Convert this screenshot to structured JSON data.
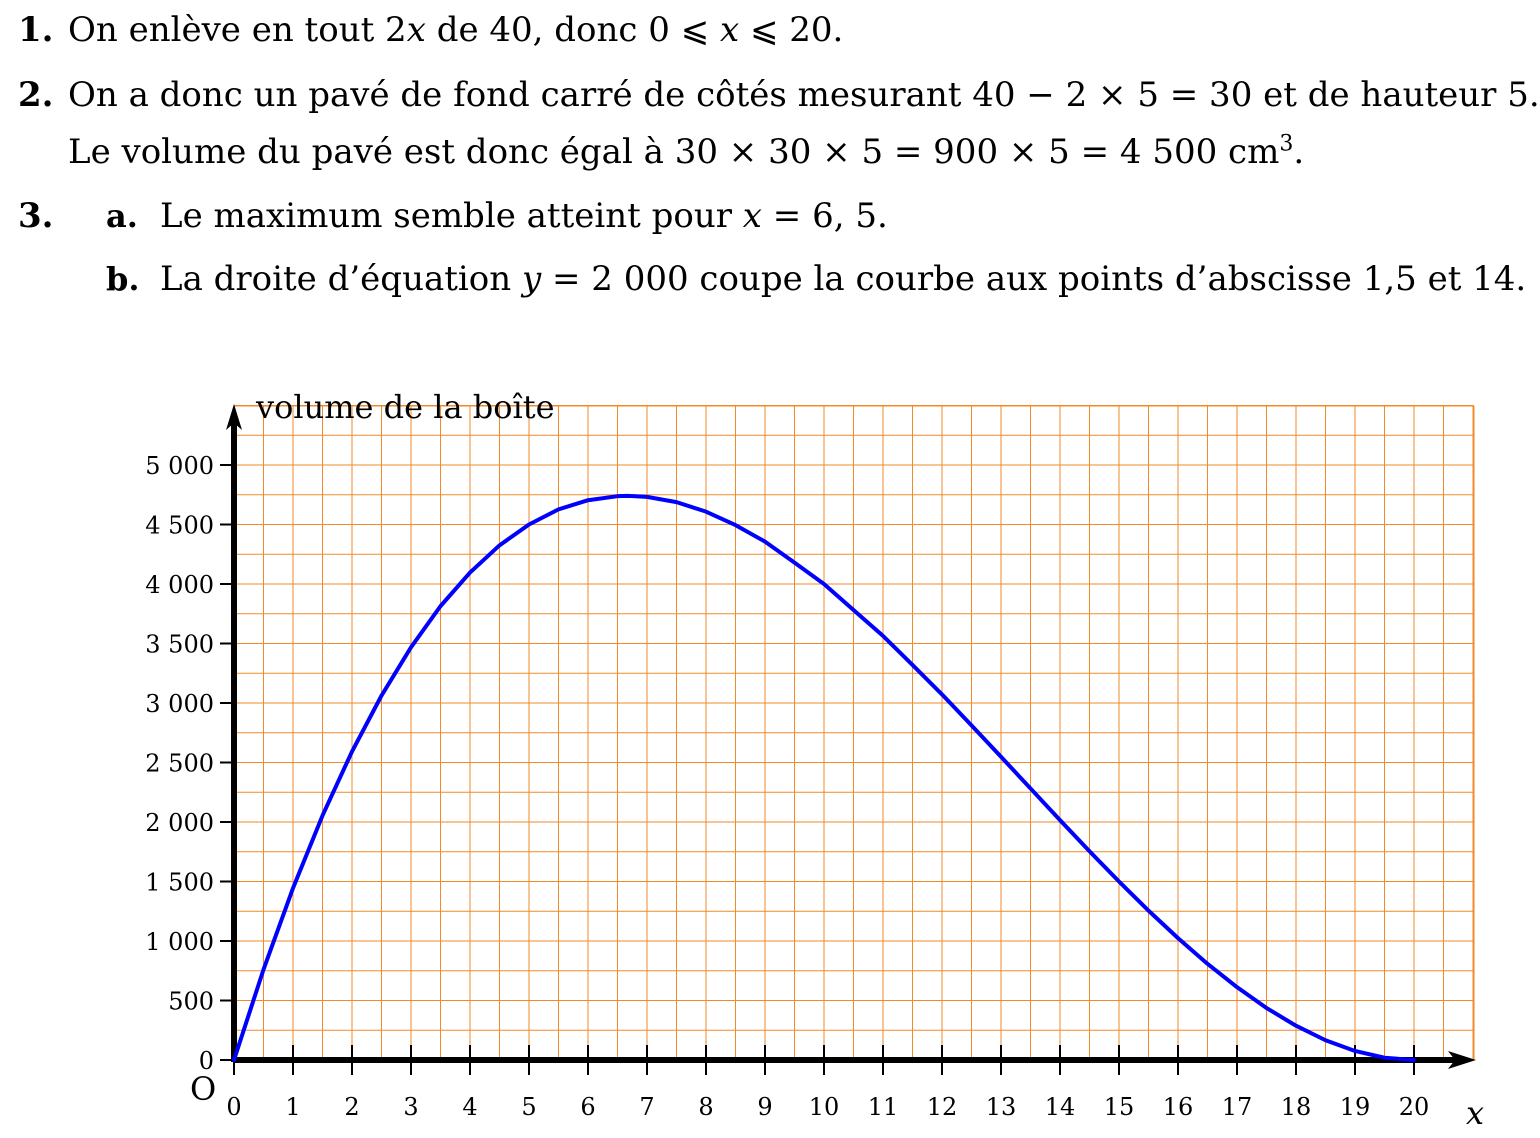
{
  "lines": {
    "l1_num": "1.",
    "l1_text_a": "On enlève en tout 2",
    "l1_x": "x",
    "l1_text_b": " de 40, donc 0 ⩽ ",
    "l1_x2": "x",
    "l1_text_c": " ⩽ 20.",
    "l2_num": "2.",
    "l2_text": "On a donc un pavé de fond carré de côtés mesurant 40 − 2 × 5 = 30 et de hauteur 5.",
    "l2b_text_a": "Le volume du pavé est donc égal à 30 × 30 × 5 = 900 × 5 = 4 500 cm",
    "l2b_sup": "3",
    "l2b_text_b": ".",
    "l3_num": "3.",
    "l3a_label": "a.",
    "l3a_text_a": "Le maximum semble atteint pour ",
    "l3a_x": "x",
    "l3a_text_b": " = 6, 5.",
    "l3b_label": "b.",
    "l3b_text_a": "La droite d’équation ",
    "l3b_y": "y",
    "l3b_text_b": " = 2 000 coupe la courbe aux points d’abscisse 1,5 et 14."
  },
  "chart_data": {
    "type": "line",
    "ylabel": "volume de la boîte",
    "xlabel": "x",
    "origin_label": "O",
    "xlim": [
      0,
      21
    ],
    "ylim": [
      0,
      5500
    ],
    "x_ticks": [
      0,
      1,
      2,
      3,
      4,
      5,
      6,
      7,
      8,
      9,
      10,
      11,
      12,
      13,
      14,
      15,
      16,
      17,
      18,
      19,
      20
    ],
    "y_ticks": [
      0,
      500,
      1000,
      1500,
      2000,
      2500,
      3000,
      3500,
      4000,
      4500,
      5000
    ],
    "y_tick_labels": [
      "0",
      "500",
      "1 000",
      "1 500",
      "2 000",
      "2 500",
      "3 000",
      "3 500",
      "4 000",
      "4 500",
      "5 000"
    ],
    "grid": true,
    "grid_step": {
      "x": 0.5,
      "y": 250
    },
    "colors": {
      "grid": "#f08a2a",
      "curve": "#0000ff",
      "axes": "#000000"
    },
    "series": [
      {
        "x": [
          0,
          0.5,
          1,
          1.5,
          2,
          2.5,
          3,
          3.5,
          4,
          4.5,
          5,
          5.5,
          6,
          6.5,
          6.67,
          7,
          7.5,
          8,
          8.5,
          9,
          9.5,
          10,
          10.5,
          11,
          11.5,
          12,
          12.5,
          13,
          13.5,
          14,
          14.5,
          15,
          15.5,
          16,
          16.5,
          17,
          17.5,
          18,
          18.5,
          19,
          19.5,
          20
        ],
        "y": [
          0,
          760,
          1444,
          2054,
          2592,
          3062,
          3468,
          3814,
          4096,
          4325,
          4500,
          4627,
          4704,
          4738,
          4741,
          4732,
          4688,
          4608,
          4495,
          4356,
          4180,
          4000,
          3782,
          3564,
          3320,
          3072,
          2812,
          2548,
          2282,
          2016,
          1754,
          1500,
          1255,
          1024,
          808,
          612,
          437,
          288,
          166,
          76,
          19,
          0
        ]
      }
    ]
  }
}
